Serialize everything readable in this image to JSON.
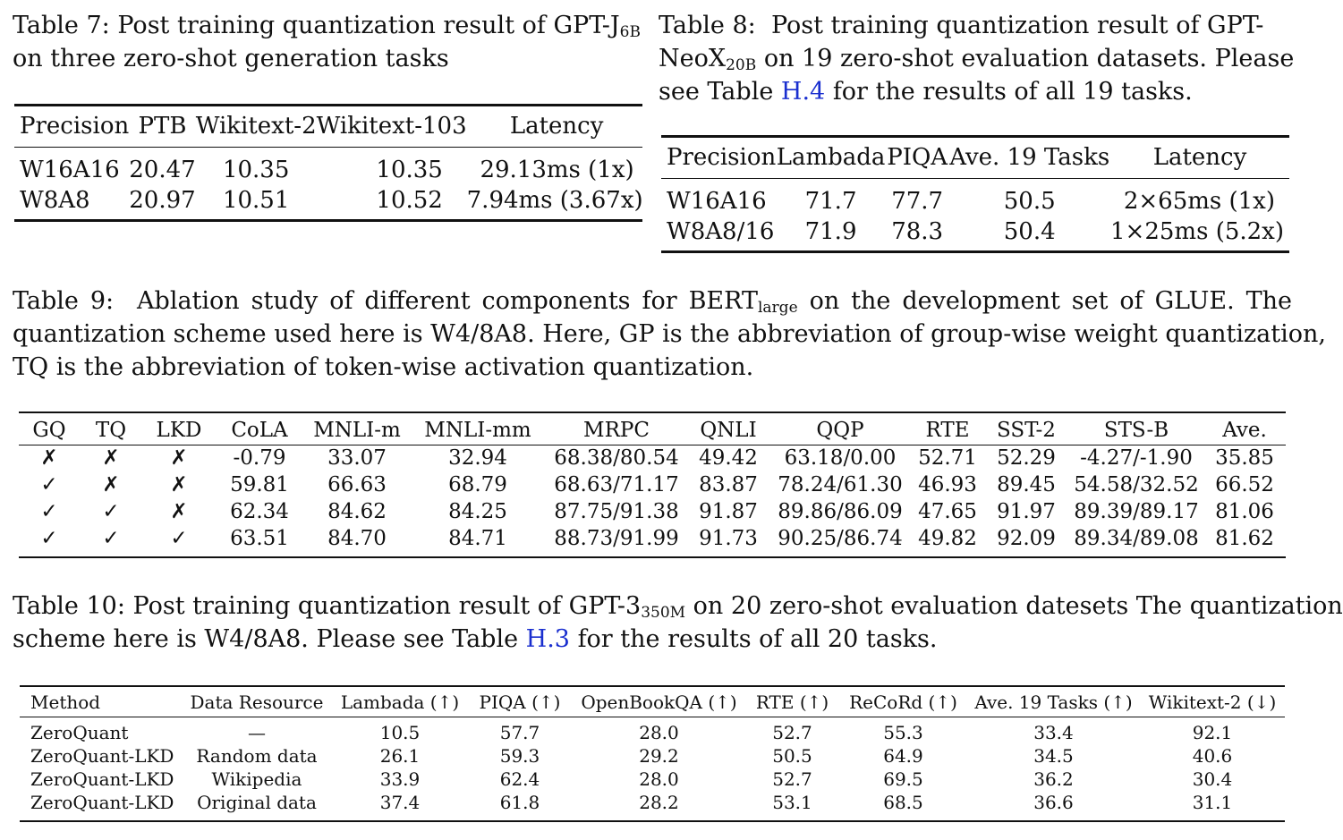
{
  "table7": {
    "caption_label": "Table 7:",
    "caption_line1_prefix": "Post training quantization result of GPT-J",
    "caption_model_sub": "6B",
    "caption_line2": "on three zero-shot generation tasks",
    "headers": [
      "Precision",
      "PTB",
      "Wikitext-2",
      "Wikitext-103",
      "Latency"
    ],
    "rows": [
      [
        "W16A16",
        "20.47",
        "10.35",
        "10.35",
        "29.13ms (1x)"
      ],
      [
        "W8A8",
        "20.97",
        "10.51",
        "10.52",
        "7.94ms (3.67x)"
      ]
    ]
  },
  "table8": {
    "caption_label": "Table 8:",
    "caption_line1": "Post training quantization result of GPT-",
    "caption_model": "NeoX",
    "caption_model_sub": "20B",
    "caption_line2_rest": "on 19 zero-shot evaluation datasets. Please",
    "caption_line3_prefix": "see Table",
    "caption_link": "H.4",
    "caption_line3_suffix": "for the results of all 19 tasks.",
    "headers": [
      "Precision",
      "Lambada",
      "PIQA",
      "Ave. 19 Tasks",
      "Latency"
    ],
    "rows": [
      [
        "W16A16",
        "71.7",
        "77.7",
        "50.5",
        "2×65ms (1x)"
      ],
      [
        "W8A8/16",
        "71.9",
        "78.3",
        "50.4",
        "1×25ms (5.2x)"
      ]
    ]
  },
  "table9": {
    "caption_label": "Table 9:",
    "caption_line1_prefix": "Ablation study of different components for BERT",
    "caption_model_sub": "large",
    "caption_line1_suffix": "on the development set of GLUE. The",
    "caption_line2": "quantization scheme used here is W4/8A8. Here, GP is the abbreviation of group-wise weight quantization,",
    "caption_line3": "TQ is the abbreviation of token-wise activation quantization.",
    "headers": [
      "GQ",
      "TQ",
      "LKD",
      "CoLA",
      "MNLI-m",
      "MNLI-mm",
      "MRPC",
      "QNLI",
      "QQP",
      "RTE",
      "SST-2",
      "STS-B",
      "Ave."
    ],
    "rows": [
      [
        "✗",
        "✗",
        "✗",
        "-0.79",
        "33.07",
        "32.94",
        "68.38/80.54",
        "49.42",
        "63.18/0.00",
        "52.71",
        "52.29",
        "-4.27/-1.90",
        "35.85"
      ],
      [
        "✓",
        "✗",
        "✗",
        "59.81",
        "66.63",
        "68.79",
        "68.63/71.17",
        "83.87",
        "78.24/61.30",
        "46.93",
        "89.45",
        "54.58/32.52",
        "66.52"
      ],
      [
        "✓",
        "✓",
        "✗",
        "62.34",
        "84.62",
        "84.25",
        "87.75/91.38",
        "91.87",
        "89.86/86.09",
        "47.65",
        "91.97",
        "89.39/89.17",
        "81.06"
      ],
      [
        "✓",
        "✓",
        "✓",
        "63.51",
        "84.70",
        "84.71",
        "88.73/91.99",
        "91.73",
        "90.25/86.74",
        "49.82",
        "92.09",
        "89.34/89.08",
        "81.62"
      ]
    ]
  },
  "table10": {
    "caption_label": "Table 10:",
    "caption_line1_prefix": "Post training quantization result of GPT-3",
    "caption_model_sub": "350M",
    "caption_line1_suffix": "on 20 zero-shot evaluation datesets The quantization",
    "caption_line2_prefix": "scheme here is W4/8A8. Please see Table",
    "caption_link": "H.3",
    "caption_line2_suffix": "for the results of all 20 tasks.",
    "headers": [
      "Method",
      "Data Resource",
      "Lambada (↑)",
      "PIQA (↑)",
      "OpenBookQA (↑)",
      "RTE (↑)",
      "ReCoRd (↑)",
      "Ave. 19 Tasks (↑)",
      "Wikitext-2 (↓)"
    ],
    "rows": [
      [
        "ZeroQuant",
        "—",
        "10.5",
        "57.7",
        "28.0",
        "52.7",
        "55.3",
        "33.4",
        "92.1"
      ],
      [
        "ZeroQuant-LKD",
        "Random data",
        "26.1",
        "59.3",
        "29.2",
        "50.5",
        "64.9",
        "34.5",
        "40.6"
      ],
      [
        "ZeroQuant-LKD",
        "Wikipedia",
        "33.9",
        "62.4",
        "28.0",
        "52.7",
        "69.5",
        "36.2",
        "30.4"
      ],
      [
        "ZeroQuant-LKD",
        "Original data",
        "37.4",
        "61.8",
        "28.2",
        "53.1",
        "68.5",
        "36.6",
        "31.1"
      ]
    ]
  },
  "colors": {
    "link": "#1a2fcf",
    "text": "#111111"
  }
}
